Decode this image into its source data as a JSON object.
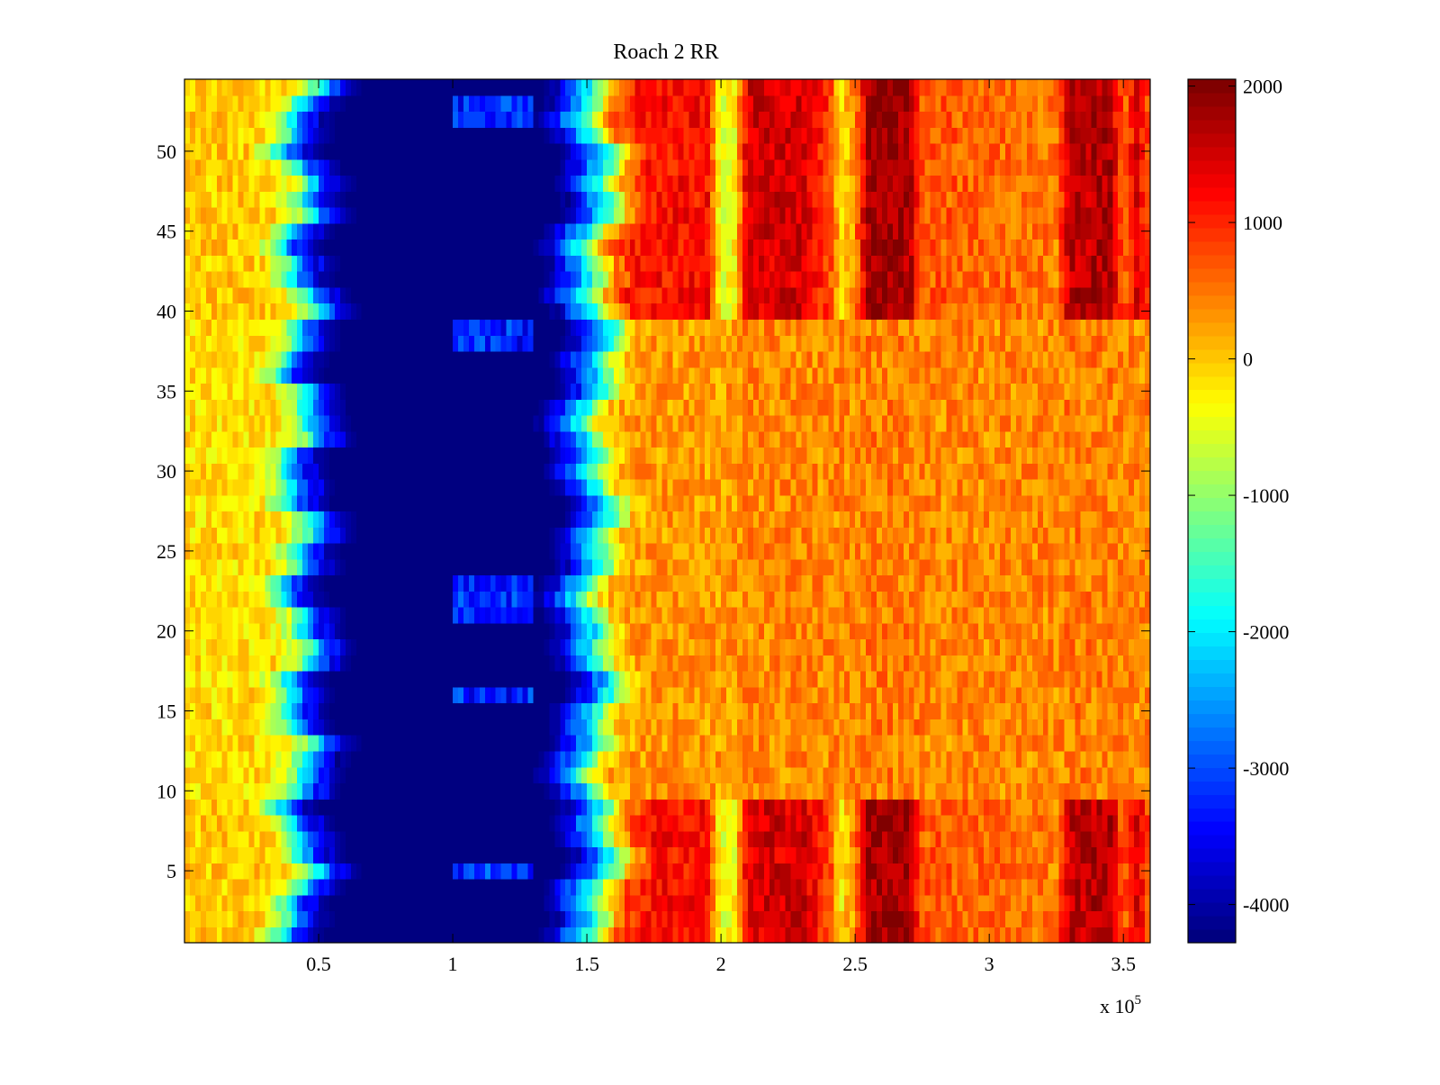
{
  "chart_data": {
    "type": "heatmap",
    "title": "Roach 2 RR",
    "xlabel": "",
    "ylabel": "",
    "x_multiplier_label": "x 10",
    "x_multiplier_exponent": "5",
    "xlim": [
      0,
      3.6
    ],
    "ylim": [
      0.5,
      54.5
    ],
    "rows": 54,
    "x_ticks": [
      "0.5",
      "1",
      "1.5",
      "2",
      "2.5",
      "3",
      "3.5"
    ],
    "y_ticks": [
      "5",
      "10",
      "15",
      "20",
      "25",
      "30",
      "35",
      "40",
      "45",
      "50"
    ],
    "colormap": "jet",
    "clim": [
      -4280,
      2050
    ],
    "colorbar_ticks": [
      "2000",
      "1000",
      "0",
      "-1000",
      "-2000",
      "-3000",
      "-4000"
    ],
    "profile_x": [
      0,
      0.3,
      0.38,
      0.43,
      0.48,
      0.55,
      0.6,
      1.35,
      1.42,
      1.47,
      1.52,
      1.57,
      1.62,
      1.7,
      1.95,
      2.0,
      2.05,
      2.1,
      2.3,
      2.4,
      2.45,
      2.5,
      2.55,
      2.7,
      2.75,
      3.25,
      3.3,
      3.45,
      3.5,
      3.55,
      3.6
    ],
    "mid_row_profile": [
      -150,
      -150,
      -900,
      -2000,
      -3200,
      -4000,
      -4280,
      -4280,
      -3600,
      -2800,
      -2000,
      -1000,
      0,
      300,
      300,
      200,
      300,
      400,
      400,
      400,
      400,
      400,
      450,
      450,
      400,
      400,
      450,
      450,
      450,
      400,
      400
    ],
    "band_row_profile": [
      0,
      0,
      -900,
      -2000,
      -3200,
      -4000,
      -4280,
      -4280,
      -3600,
      -2800,
      -2000,
      -1000,
      300,
      1100,
      1200,
      -500,
      -300,
      1500,
      1500,
      900,
      -200,
      400,
      1800,
      1800,
      700,
      500,
      1600,
      1700,
      600,
      1400,
      700
    ],
    "band_rows": [
      1,
      2,
      3,
      4,
      5,
      6,
      7,
      8,
      9,
      40,
      41,
      42,
      43,
      44,
      45,
      46,
      47,
      48,
      49,
      50,
      51,
      52,
      53,
      54
    ],
    "light_blue_rows": [
      5,
      16,
      21,
      22,
      23,
      38,
      39,
      52,
      53
    ]
  }
}
